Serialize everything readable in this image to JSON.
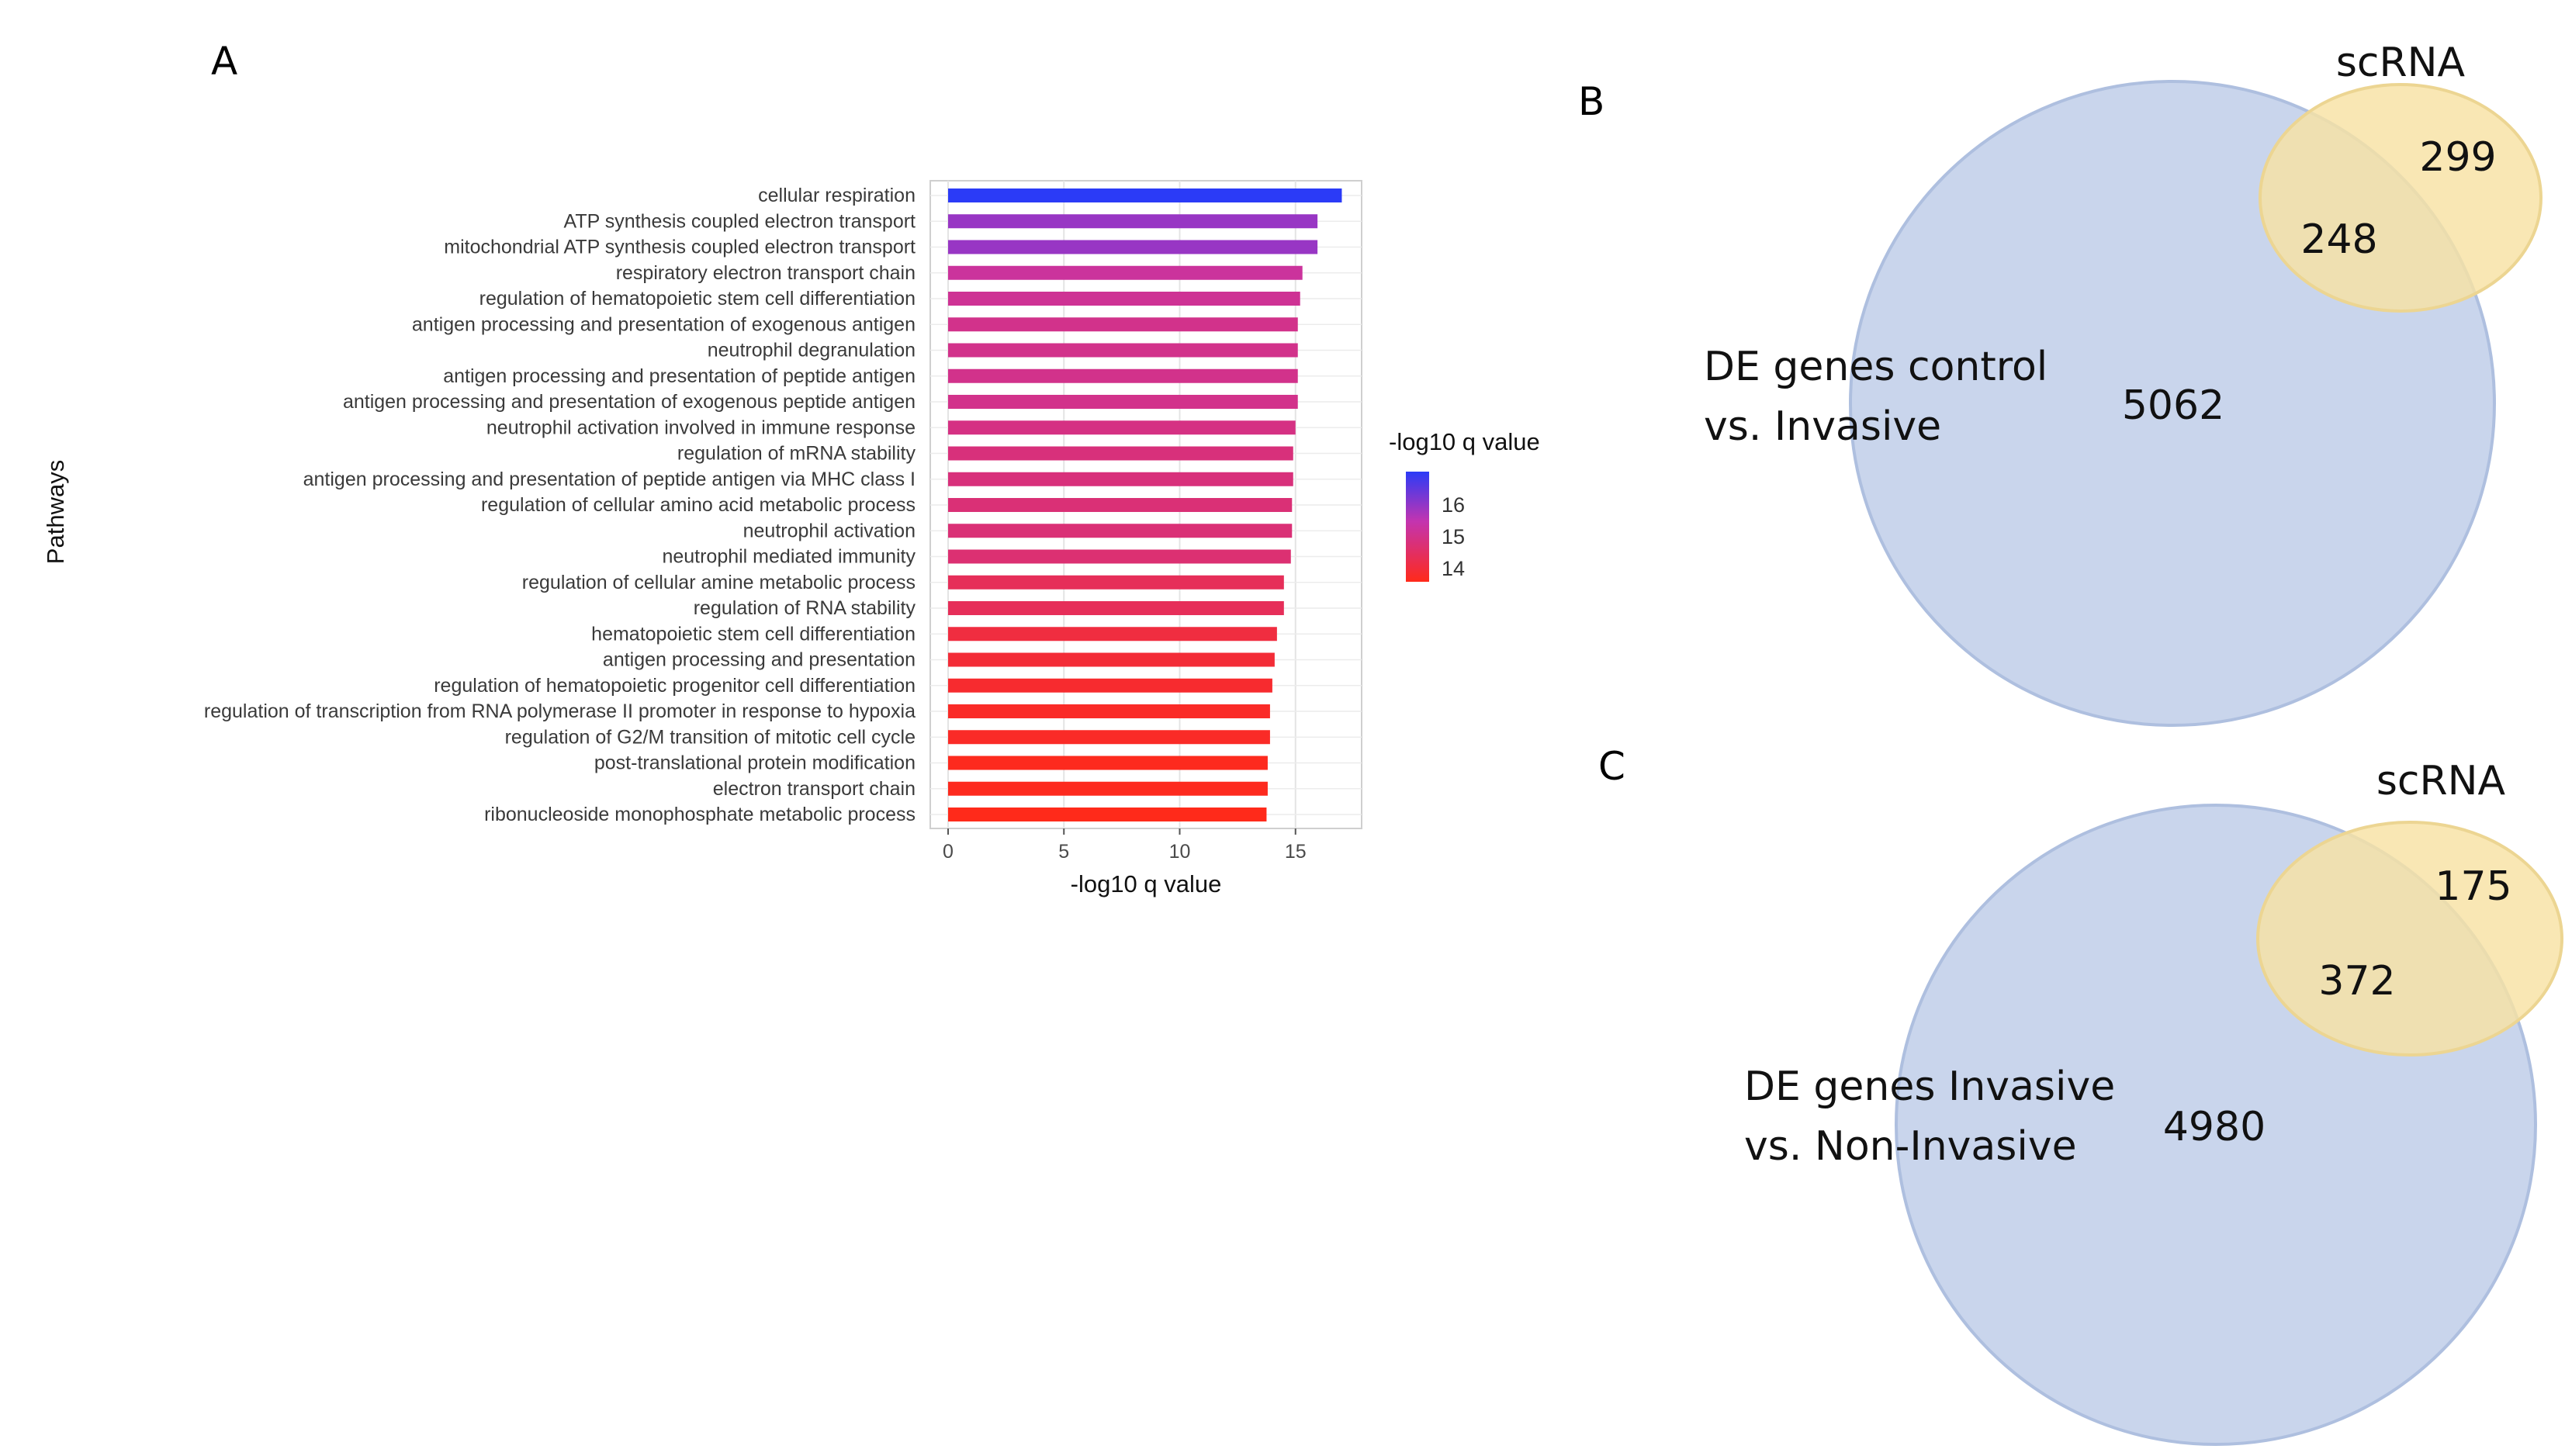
{
  "chart_data": [
    {
      "panel": "A",
      "type": "bar",
      "orientation": "horizontal",
      "ylabel": "Pathways",
      "xlabel": "-log10 q value",
      "xlim": [
        0,
        17.7
      ],
      "xticks": [
        "0",
        "5",
        "10",
        "15"
      ],
      "grid": true,
      "legend": {
        "title": "-log10 q value",
        "ticks": [
          "16",
          "15",
          "14"
        ],
        "placement": "right",
        "colors": [
          "#2B3BF7",
          "#C334B0",
          "#FF2A1A"
        ]
      },
      "categories": [
        "cellular respiration",
        "ATP synthesis coupled electron transport",
        "mitochondrial ATP synthesis coupled electron transport",
        "respiratory electron transport chain",
        "regulation of hematopoietic stem cell differentiation",
        "antigen processing and presentation of exogenous antigen",
        "neutrophil degranulation",
        "antigen processing and presentation of peptide antigen",
        "antigen processing and presentation of exogenous peptide antigen",
        "neutrophil activation involved in immune response",
        "regulation of mRNA stability",
        "antigen processing and presentation of peptide antigen via MHC class I",
        "regulation of cellular amino acid metabolic process",
        "neutrophil activation",
        "neutrophil mediated immunity",
        "regulation of cellular amine metabolic process",
        "regulation of RNA stability",
        "hematopoietic stem cell differentiation",
        "antigen processing and presentation",
        "regulation of hematopoietic progenitor cell differentiation",
        "regulation of transcription from RNA polymerase II promoter in response to hypoxia",
        "regulation of G2/M transition of mitotic cell cycle",
        "post-translational protein modification",
        "electron transport chain",
        "ribonucleoside monophosphate metabolic process"
      ],
      "values": [
        17.0,
        15.95,
        15.95,
        15.3,
        15.2,
        15.1,
        15.1,
        15.1,
        15.1,
        15.0,
        14.9,
        14.9,
        14.85,
        14.85,
        14.8,
        14.5,
        14.5,
        14.2,
        14.1,
        14.0,
        13.9,
        13.9,
        13.8,
        13.8,
        13.75
      ]
    },
    {
      "panel": "B",
      "type": "venn",
      "sets": [
        "DE genes control vs. Invasive",
        "scRNA"
      ],
      "label_lines": [
        "DE genes control",
        "vs. Invasive"
      ],
      "set_label": "scRNA",
      "only_de": 5062,
      "overlap": 248,
      "only_scrna": 299
    },
    {
      "panel": "C",
      "type": "venn",
      "sets": [
        "DE genes Invasive vs. Non-Invasive",
        "scRNA"
      ],
      "label_lines": [
        "DE genes Invasive",
        "vs. Non-Invasive"
      ],
      "set_label": "scRNA",
      "only_de": 4980,
      "overlap": 372,
      "only_scrna": 175
    }
  ],
  "panels": {
    "a": "A",
    "b": "B",
    "c": "C"
  },
  "colors": {
    "bar_high": "#2B3BF7",
    "bar_mid": "#C334B0",
    "bar_low": "#FF2A1A",
    "de_circle": "#C9D5EC",
    "de_circle_stroke": "#AEBFDF",
    "scrna_circle": "#F8E2A4",
    "scrna_circle_stroke": "#ECD592"
  }
}
